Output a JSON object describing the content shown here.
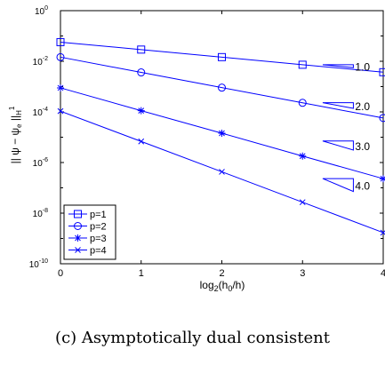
{
  "caption": "(c) Asymptotically dual consistent",
  "chart_data": {
    "type": "line",
    "xlabel_parts": {
      "main": "log",
      "sub": "2",
      "open": "(h",
      "sub2": "0",
      "close": "/h)"
    },
    "ylabel": "|| ψ − ψe ||H¹",
    "ylabel_parts": {
      "main": "|| ψ − ψ",
      "sub": "e",
      "mid": " ||",
      "sub2": "H",
      "sup": "1"
    },
    "x_ticks": [
      "0",
      "1",
      "2",
      "3",
      "4"
    ],
    "y_ticks": [
      {
        "base": "10",
        "exp": "0",
        "value": 0
      },
      {
        "base": "10",
        "exp": "-2",
        "value": -2
      },
      {
        "base": "10",
        "exp": "-4",
        "value": -4
      },
      {
        "base": "10",
        "exp": "-6",
        "value": -6
      },
      {
        "base": "10",
        "exp": "-8",
        "value": -8
      },
      {
        "base": "10",
        "exp": "-10",
        "value": -10
      }
    ],
    "xlim": [
      0,
      4
    ],
    "ylim": [
      1e-10,
      1
    ],
    "y_scale": "log",
    "grid": false,
    "legend_position": "bottom-left",
    "series": [
      {
        "name": "p=1",
        "marker": "square",
        "x": [
          0,
          1,
          2,
          3,
          4
        ],
        "y": [
          0.057,
          0.029,
          0.0146,
          0.0073,
          0.0037
        ]
      },
      {
        "name": "p=2",
        "marker": "circle",
        "x": [
          0,
          1,
          2,
          3,
          4
        ],
        "y": [
          0.0146,
          0.00363,
          0.00091,
          0.000228,
          5.75e-05
        ]
      },
      {
        "name": "p=3",
        "marker": "asterisk",
        "x": [
          0,
          1,
          2,
          3,
          4
        ],
        "y": [
          0.00089,
          0.000112,
          1.44e-05,
          1.8e-06,
          2.3e-07
        ]
      },
      {
        "name": "p=4",
        "marker": "x",
        "x": [
          0,
          1,
          2,
          3,
          4
        ],
        "y": [
          0.000107,
          6.8e-06,
          4.3e-07,
          2.7e-08,
          1.7e-09
        ]
      }
    ],
    "slope_annotations": [
      {
        "label": "1.0",
        "x_start": 3.25,
        "x_end": 3.63,
        "y_top": 0.0073,
        "y_bottom": 0.0056
      },
      {
        "label": "2.0",
        "x_start": 3.25,
        "x_end": 3.63,
        "y_top": 0.000232,
        "y_bottom": 0.000138
      },
      {
        "label": "3.0",
        "x_start": 3.25,
        "x_end": 3.63,
        "y_top": 7.1e-06,
        "y_bottom": 3.1e-06
      },
      {
        "label": "4.0",
        "x_start": 3.25,
        "x_end": 3.63,
        "y_top": 2.32e-07,
        "y_bottom": 7.2e-08
      }
    ]
  }
}
